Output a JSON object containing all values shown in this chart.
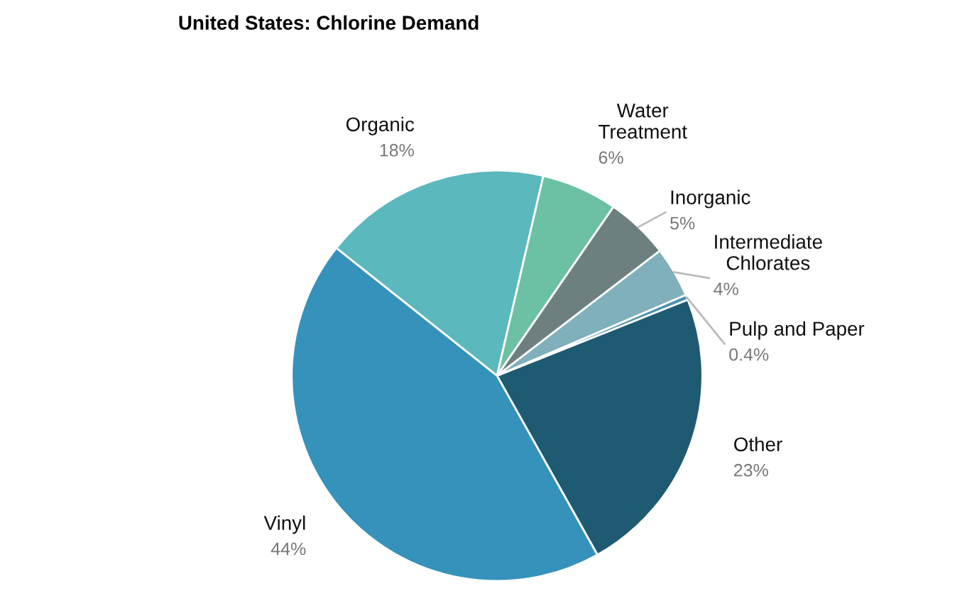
{
  "chart_data": {
    "type": "pie",
    "title": "United States: Chlorine Demand",
    "categories": [
      "Organic",
      "Water\nTreatment",
      "Inorganic",
      "Intermediate\nChlorates",
      "Pulp and Paper",
      "Other",
      "Vinyl"
    ],
    "values": [
      18,
      6,
      5,
      4,
      0.4,
      23,
      44
    ],
    "value_labels": [
      "18%",
      "6%",
      "5%",
      "4%",
      "0.4%",
      "23%",
      "44%"
    ],
    "colors": [
      "#5bb8bd",
      "#6cc0a4",
      "#6e7f80",
      "#7fb0bb",
      "#4a90b0",
      "#1f5a73",
      "#3592bb"
    ],
    "legend": false
  }
}
